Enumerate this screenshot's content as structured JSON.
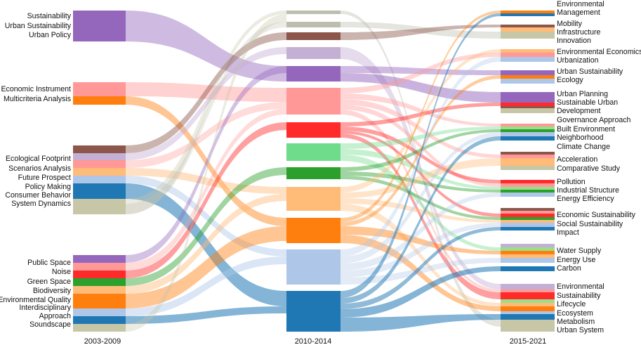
{
  "periods": [
    "2003-2009",
    "2010-2014",
    "2015-2021"
  ],
  "labels": {
    "left": [
      "Sustainability",
      "Urban Sustainability",
      "Urban Policy",
      "Economic Instrument",
      "Multicriteria Analysis",
      "Ecological Footprint",
      "Scenarios Analysis",
      "Future Prospect",
      "Policy Making",
      "Consumer Behavior",
      "System Dynamics",
      "Public Space",
      "Noise",
      "Green Space",
      "Biodiversity",
      "Environmental Quality",
      "Interdisciplinary",
      "Approach",
      "Soundscape"
    ],
    "right": [
      "Environmental",
      "Management",
      "Mobility",
      "Infrastructure",
      "Innovation",
      "Environmental Economics",
      "Urbanization",
      "Urban Sustainability",
      "Ecology",
      "Urban Planning",
      "Sustainable Urban",
      "Development",
      "Governance Approach",
      "Built Environment",
      "Neighborhood",
      "Climate Change",
      "Acceleration",
      "Comparative Study",
      "Pollution",
      "Industrial Structure",
      "Energy Efficiency",
      "Economic Sustainability",
      "Social Sustainability",
      "Impact",
      "Water Supply",
      "Energy Use",
      "Carbon",
      "Environmental",
      "Sustainability",
      "Lifecycle",
      "Ecosystem",
      "Metabolism",
      "Urban System"
    ]
  },
  "colors": {
    "purple": "#9467bd",
    "lightpurple": "#c5b0d5",
    "pink": "#ff9896",
    "orange": "#ff7f0e",
    "lightorange": "#ffbb78",
    "brown": "#8c564b",
    "blue": "#1f77b4",
    "lightblue": "#aec7e8",
    "olive": "#c7c7a8",
    "red": "#ff2b2b",
    "green": "#2ca02c",
    "lightgreen": "#98df8a",
    "midgreen": "#6fdc8c",
    "grey": "#bdbdb0"
  }
}
